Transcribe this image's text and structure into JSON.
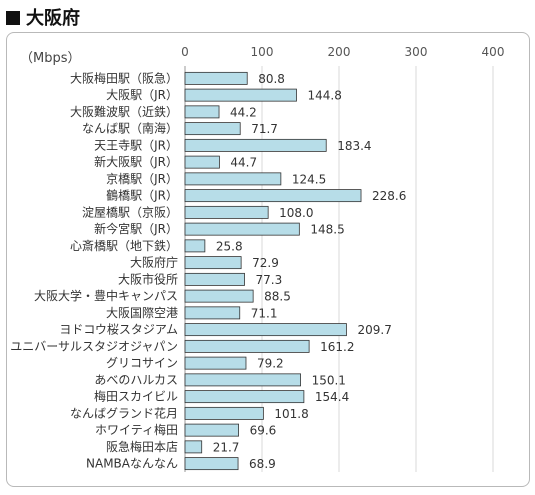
{
  "page": {
    "title": "大阪府"
  },
  "chart_data": {
    "type": "bar",
    "orientation": "horizontal",
    "title": "大阪府",
    "unit_label": "（Mbps）",
    "xlim": [
      0,
      400
    ],
    "x_ticks": [
      0,
      100,
      200,
      300,
      400
    ],
    "grid": true,
    "bar_color": "#b7dde8",
    "bar_edge_color": "#333333",
    "categories": [
      "大阪梅田駅（阪急）",
      "大阪駅（JR）",
      "大阪難波駅（近鉄）",
      "なんば駅（南海）",
      "天王寺駅（JR）",
      "新大阪駅（JR）",
      "京橋駅（JR）",
      "鶴橋駅（JR）",
      "淀屋橋駅（京阪）",
      "新今宮駅（JR）",
      "心斎橋駅（地下鉄）",
      "大阪府庁",
      "大阪市役所",
      "大阪大学・豊中キャンパス",
      "大阪国際空港",
      "ヨドコウ桜スタジアム",
      "ユニバーサルスタジオジャパン",
      "グリコサイン",
      "あべのハルカス",
      "梅田スカイビル",
      "なんばグランド花月",
      "ホワイティ梅田",
      "阪急梅田本店",
      "NAMBAなんなん"
    ],
    "values": [
      80.8,
      144.8,
      44.2,
      71.7,
      183.4,
      44.7,
      124.5,
      228.6,
      108.0,
      148.5,
      25.8,
      72.9,
      77.3,
      88.5,
      71.1,
      209.7,
      161.2,
      79.2,
      150.1,
      154.4,
      101.8,
      69.6,
      21.7,
      68.9
    ],
    "value_labels": [
      "80.8",
      "144.8",
      "44.2",
      "71.7",
      "183.4",
      "44.7",
      "124.5",
      "228.6",
      "108.0",
      "148.5",
      "25.8",
      "72.9",
      "77.3",
      "88.5",
      "71.1",
      "209.7",
      "161.2",
      "79.2",
      "150.1",
      "154.4",
      "101.8",
      "69.6",
      "21.7",
      "68.9"
    ]
  }
}
